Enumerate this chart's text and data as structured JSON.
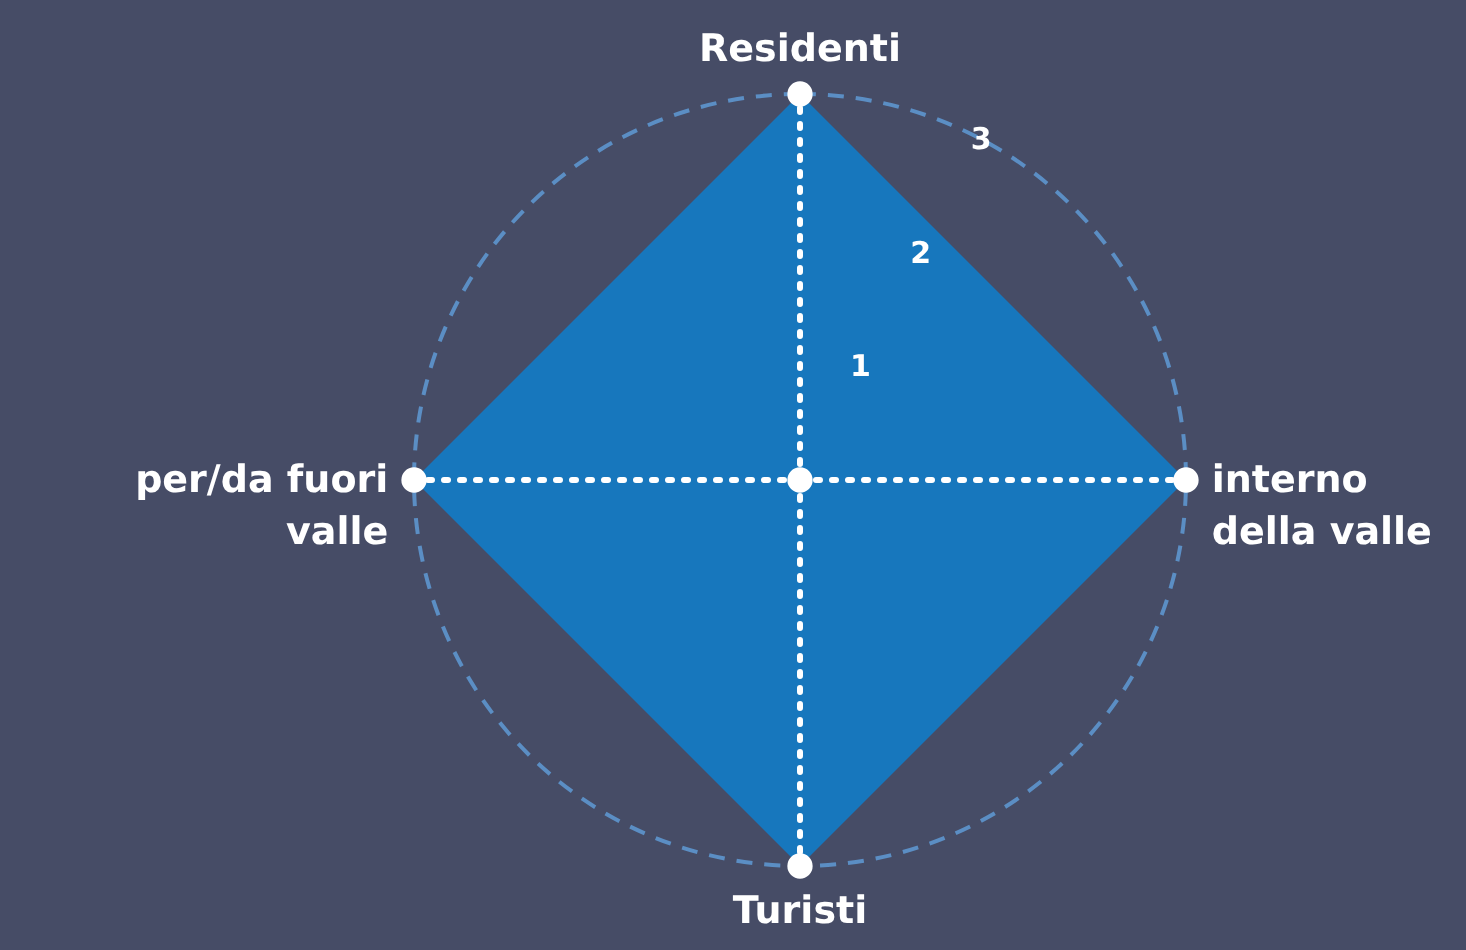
{
  "chart_data": {
    "type": "radar",
    "categories": [
      "Residenti",
      "interno\ndella valle",
      "Turisti",
      "per/da fuori\nvalle"
    ],
    "series": [
      {
        "color": "#1777bd",
        "values": [
          3,
          3,
          3,
          3
        ]
      }
    ],
    "ylim": [
      0,
      3
    ],
    "yticks": [
      1,
      2,
      3
    ],
    "grid": true,
    "marker": "circle"
  }
}
